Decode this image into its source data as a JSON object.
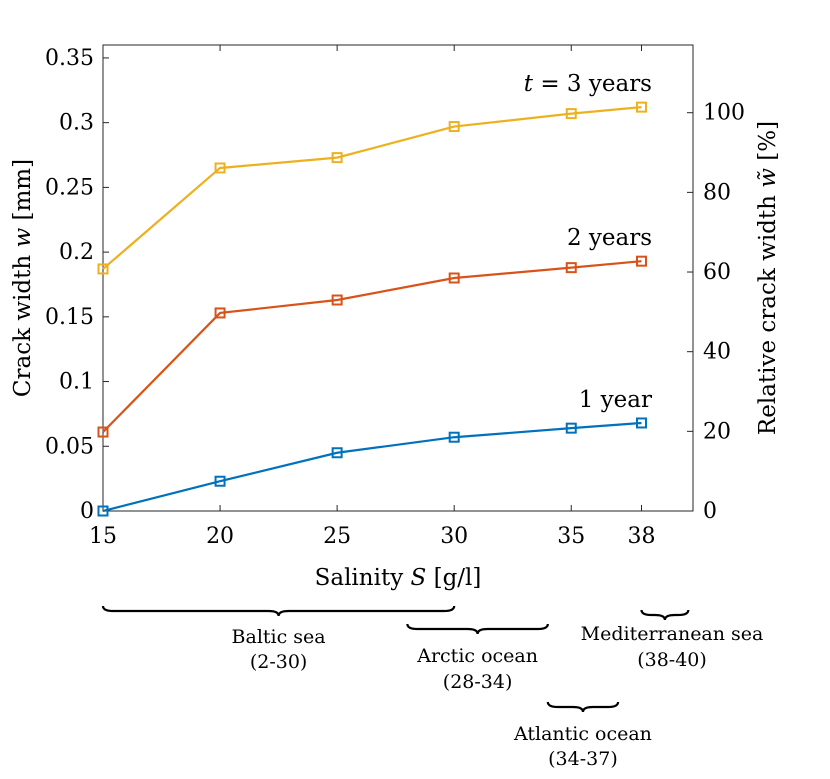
{
  "chart_data": {
    "type": "line",
    "x": [
      15,
      20,
      25,
      30,
      35,
      38
    ],
    "xlabel": "Salinity",
    "xlabel_symbol": "S",
    "xlabel_unit": "[g/l]",
    "xlim": [
      15,
      40.2
    ],
    "xticks": [
      15,
      20,
      25,
      30,
      35,
      38
    ],
    "ylabel": "Crack width",
    "ylabel_symbol": "w",
    "ylabel_unit": "[mm]",
    "ylim": [
      0,
      0.36
    ],
    "yticks": [
      "0",
      "0.05",
      "0.1",
      "0.15",
      "0.2",
      "0.25",
      "0.3",
      "0.35"
    ],
    "y2label": "Relative crack width",
    "y2label_symbol": "w̃",
    "y2label_unit": "[%]",
    "y2lim": [
      0,
      117
    ],
    "y2ticks": [
      "0",
      "20",
      "40",
      "60",
      "80",
      "100"
    ],
    "grid": false,
    "series": [
      {
        "name": "1 year",
        "label": "1 year",
        "color": "#0072BD",
        "values": [
          0.0,
          0.023,
          0.045,
          0.057,
          0.064,
          0.068
        ]
      },
      {
        "name": "2 years",
        "label": "2 years",
        "color": "#D95319",
        "values": [
          0.061,
          0.153,
          0.163,
          0.18,
          0.188,
          0.193
        ]
      },
      {
        "name": "3 years",
        "label_prefix": "t = 3",
        "label_suffix": "years",
        "color": "#EDB120",
        "values": [
          0.187,
          0.265,
          0.273,
          0.297,
          0.307,
          0.312
        ]
      }
    ],
    "regions": [
      {
        "name": "Baltic sea",
        "range_text": "(2-30)",
        "from": 15,
        "to": 30
      },
      {
        "name": "Arctic ocean",
        "range_text": "(28-34)",
        "from": 28,
        "to": 34
      },
      {
        "name": "Atlantic ocean",
        "range_text": "(34-37)",
        "from": 34,
        "to": 37
      },
      {
        "name": "Mediterranean sea",
        "range_text": "(38-40)",
        "from": 38,
        "to": 40
      }
    ]
  }
}
